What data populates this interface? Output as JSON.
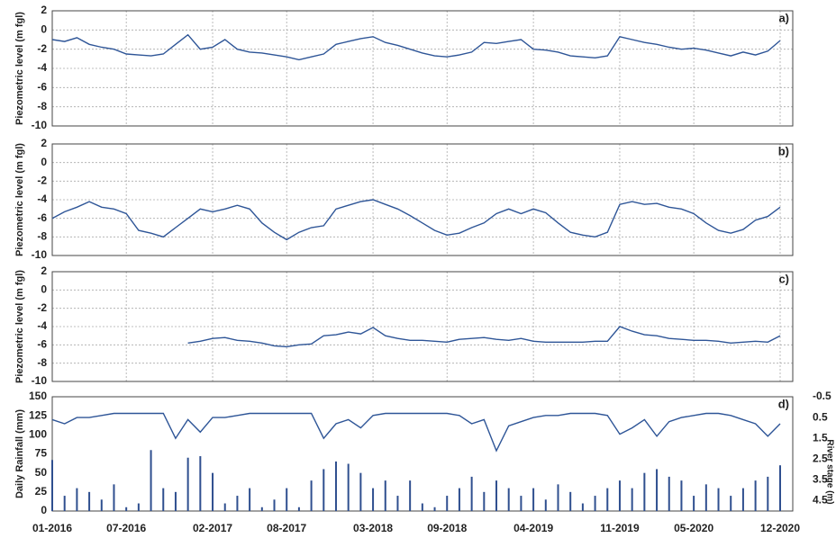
{
  "chart_data": [
    {
      "type": "line",
      "annotation": "a)",
      "ylabel": "Piezometric level (m fgl)",
      "grid": true,
      "xtick_labels": false,
      "xlim": [
        "01-2016",
        "12-2020"
      ],
      "xticks": [
        "01-2016",
        "07-2016",
        "02-2017",
        "08-2017",
        "03-2018",
        "09-2018",
        "04-2019",
        "11-2019",
        "05-2020",
        "12-2020"
      ],
      "ylim": [
        -10,
        2
      ],
      "yticks": [
        2,
        0,
        -2,
        -4,
        -6,
        -8,
        -10
      ],
      "x": [
        "01-2016",
        "02-2016",
        "03-2016",
        "04-2016",
        "05-2016",
        "06-2016",
        "07-2016",
        "08-2016",
        "09-2016",
        "10-2016",
        "11-2016",
        "12-2016",
        "01-2017",
        "02-2017",
        "03-2017",
        "04-2017",
        "05-2017",
        "06-2017",
        "07-2017",
        "08-2017",
        "09-2017",
        "10-2017",
        "11-2017",
        "12-2017",
        "01-2018",
        "02-2018",
        "03-2018",
        "04-2018",
        "05-2018",
        "06-2018",
        "07-2018",
        "08-2018",
        "09-2018",
        "10-2018",
        "11-2018",
        "12-2018",
        "01-2019",
        "02-2019",
        "03-2019",
        "04-2019",
        "05-2019",
        "06-2019",
        "07-2019",
        "08-2019",
        "09-2019",
        "10-2019",
        "11-2019",
        "12-2019",
        "01-2020",
        "02-2020",
        "03-2020",
        "04-2020",
        "05-2020",
        "06-2020",
        "07-2020",
        "08-2020",
        "09-2020",
        "10-2020",
        "11-2020",
        "12-2020"
      ],
      "series": [
        {
          "color": "#2e5597",
          "values": [
            -1.0,
            -1.2,
            -0.8,
            -1.5,
            -1.8,
            -2.0,
            -2.5,
            -2.6,
            -2.7,
            -2.5,
            -1.5,
            -0.5,
            -2.0,
            -1.8,
            -1.0,
            -2.0,
            -2.3,
            -2.4,
            -2.6,
            -2.8,
            -3.1,
            -2.8,
            -2.5,
            -1.5,
            -1.2,
            -0.9,
            -0.7,
            -1.3,
            -1.6,
            -2.0,
            -2.4,
            -2.7,
            -2.8,
            -2.6,
            -2.3,
            -1.3,
            -1.4,
            -1.2,
            -1.0,
            -2.0,
            -2.1,
            -2.3,
            -2.7,
            -2.8,
            -2.9,
            -2.7,
            -0.7,
            -1.0,
            -1.3,
            -1.5,
            -1.8,
            -2.0,
            -1.9,
            -2.1,
            -2.4,
            -2.7,
            -2.3,
            -2.6,
            -2.2,
            -1.1
          ]
        }
      ]
    },
    {
      "type": "line",
      "annotation": "b)",
      "ylabel": "Piezometric level (m fgl)",
      "grid": true,
      "xtick_labels": false,
      "xlim": [
        "01-2016",
        "12-2020"
      ],
      "xticks": [
        "01-2016",
        "07-2016",
        "02-2017",
        "08-2017",
        "03-2018",
        "09-2018",
        "04-2019",
        "11-2019",
        "05-2020",
        "12-2020"
      ],
      "ylim": [
        -10,
        2
      ],
      "yticks": [
        2,
        0,
        -2,
        -4,
        -6,
        -8,
        -10
      ],
      "x": [
        "01-2016",
        "02-2016",
        "03-2016",
        "04-2016",
        "05-2016",
        "06-2016",
        "07-2016",
        "08-2016",
        "09-2016",
        "10-2016",
        "11-2016",
        "12-2016",
        "01-2017",
        "02-2017",
        "03-2017",
        "04-2017",
        "05-2017",
        "06-2017",
        "07-2017",
        "08-2017",
        "09-2017",
        "10-2017",
        "11-2017",
        "12-2017",
        "01-2018",
        "02-2018",
        "03-2018",
        "04-2018",
        "05-2018",
        "06-2018",
        "07-2018",
        "08-2018",
        "09-2018",
        "10-2018",
        "11-2018",
        "12-2018",
        "01-2019",
        "02-2019",
        "03-2019",
        "04-2019",
        "05-2019",
        "06-2019",
        "07-2019",
        "08-2019",
        "09-2019",
        "10-2019",
        "11-2019",
        "12-2019",
        "01-2020",
        "02-2020",
        "03-2020",
        "04-2020",
        "05-2020",
        "06-2020",
        "07-2020",
        "08-2020",
        "09-2020",
        "10-2020",
        "11-2020",
        "12-2020"
      ],
      "series": [
        {
          "color": "#2e5597",
          "values": [
            -6.0,
            -5.3,
            -4.8,
            -4.2,
            -4.8,
            -5.0,
            -5.5,
            -7.3,
            -7.6,
            -8.0,
            -7.0,
            -6.0,
            -5.0,
            -5.3,
            -5.0,
            -4.6,
            -5.0,
            -6.5,
            -7.5,
            -8.3,
            -7.5,
            -7.0,
            -6.8,
            -5.0,
            -4.6,
            -4.2,
            -4.0,
            -4.5,
            -5.0,
            -5.7,
            -6.5,
            -7.3,
            -7.8,
            -7.6,
            -7.0,
            -6.5,
            -5.5,
            -5.0,
            -5.5,
            -5.0,
            -5.4,
            -6.5,
            -7.5,
            -7.8,
            -8.0,
            -7.5,
            -4.5,
            -4.2,
            -4.5,
            -4.4,
            -4.8,
            -5.0,
            -5.5,
            -6.5,
            -7.3,
            -7.6,
            -7.2,
            -6.2,
            -5.8,
            -4.8
          ]
        }
      ]
    },
    {
      "type": "line",
      "annotation": "c)",
      "ylabel": "Piezometric level (m fgl)",
      "grid": true,
      "xtick_labels": false,
      "xlim": [
        "01-2016",
        "12-2020"
      ],
      "xticks": [
        "01-2016",
        "07-2016",
        "02-2017",
        "08-2017",
        "03-2018",
        "09-2018",
        "04-2019",
        "11-2019",
        "05-2020",
        "12-2020"
      ],
      "ylim": [
        -10,
        2
      ],
      "yticks": [
        2,
        0,
        -2,
        -4,
        -6,
        -8,
        -10
      ],
      "x": [
        "01-2016",
        "02-2016",
        "03-2016",
        "04-2016",
        "05-2016",
        "06-2016",
        "07-2016",
        "08-2016",
        "09-2016",
        "10-2016",
        "11-2016",
        "12-2016",
        "01-2017",
        "02-2017",
        "03-2017",
        "04-2017",
        "05-2017",
        "06-2017",
        "07-2017",
        "08-2017",
        "09-2017",
        "10-2017",
        "11-2017",
        "12-2017",
        "01-2018",
        "02-2018",
        "03-2018",
        "04-2018",
        "05-2018",
        "06-2018",
        "07-2018",
        "08-2018",
        "09-2018",
        "10-2018",
        "11-2018",
        "12-2018",
        "01-2019",
        "02-2019",
        "03-2019",
        "04-2019",
        "05-2019",
        "06-2019",
        "07-2019",
        "08-2019",
        "09-2019",
        "10-2019",
        "11-2019",
        "12-2019",
        "01-2020",
        "02-2020",
        "03-2020",
        "04-2020",
        "05-2020",
        "06-2020",
        "07-2020",
        "08-2020",
        "09-2020",
        "10-2020",
        "11-2020",
        "12-2020"
      ],
      "series": [
        {
          "color": "#2e5597",
          "values": [
            null,
            null,
            null,
            null,
            null,
            null,
            null,
            null,
            null,
            null,
            null,
            -5.8,
            -5.6,
            -5.3,
            -5.2,
            -5.5,
            -5.6,
            -5.8,
            -6.1,
            -6.2,
            -6.0,
            -5.9,
            -5.0,
            -4.9,
            -4.6,
            -4.8,
            -4.1,
            -5.0,
            -5.3,
            -5.5,
            -5.5,
            -5.6,
            -5.7,
            -5.4,
            -5.3,
            -5.2,
            -5.4,
            -5.5,
            -5.3,
            -5.6,
            -5.7,
            -5.7,
            -5.7,
            -5.7,
            -5.6,
            -5.6,
            -4.0,
            -4.5,
            -4.9,
            -5.0,
            -5.3,
            -5.4,
            -5.5,
            -5.5,
            -5.6,
            -5.8,
            -5.7,
            -5.6,
            -5.7,
            -5.0
          ]
        }
      ]
    },
    {
      "type": "combo",
      "annotation": "d)",
      "ylabel": "Daily Rainfall (mm)",
      "y2label": "River stage (m)",
      "grid": false,
      "xtick_labels": true,
      "xlim": [
        "01-2016",
        "12-2020"
      ],
      "xticks": [
        "01-2016",
        "07-2016",
        "02-2017",
        "08-2017",
        "03-2018",
        "09-2018",
        "04-2019",
        "11-2019",
        "05-2020",
        "12-2020"
      ],
      "ylim": [
        0,
        150
      ],
      "yticks": [
        0,
        25,
        50,
        75,
        100,
        125,
        150
      ],
      "y2lim": [
        5,
        -0.5
      ],
      "y2ticks": [
        -0.5,
        0.5,
        1.5,
        2.5,
        3.5,
        4.5
      ],
      "x": [
        "01-2016",
        "02-2016",
        "03-2016",
        "04-2016",
        "05-2016",
        "06-2016",
        "07-2016",
        "08-2016",
        "09-2016",
        "10-2016",
        "11-2016",
        "12-2016",
        "01-2017",
        "02-2017",
        "03-2017",
        "04-2017",
        "05-2017",
        "06-2017",
        "07-2017",
        "08-2017",
        "09-2017",
        "10-2017",
        "11-2017",
        "12-2017",
        "01-2018",
        "02-2018",
        "03-2018",
        "04-2018",
        "05-2018",
        "06-2018",
        "07-2018",
        "08-2018",
        "09-2018",
        "10-2018",
        "11-2018",
        "12-2018",
        "01-2019",
        "02-2019",
        "03-2019",
        "04-2019",
        "05-2019",
        "06-2019",
        "07-2019",
        "08-2019",
        "09-2019",
        "10-2019",
        "11-2019",
        "12-2019",
        "01-2020",
        "02-2020",
        "03-2020",
        "04-2020",
        "05-2020",
        "06-2020",
        "07-2020",
        "08-2020",
        "09-2020",
        "10-2020",
        "11-2020",
        "12-2020"
      ],
      "series": [
        {
          "kind": "bar",
          "color": "#2f4f8f",
          "values": [
            67,
            20,
            30,
            25,
            15,
            35,
            5,
            10,
            80,
            30,
            25,
            70,
            72,
            50,
            10,
            20,
            30,
            5,
            15,
            30,
            5,
            40,
            55,
            65,
            62,
            50,
            30,
            40,
            20,
            40,
            10,
            5,
            20,
            30,
            45,
            25,
            40,
            30,
            20,
            30,
            15,
            35,
            25,
            10,
            20,
            30,
            40,
            30,
            50,
            55,
            45,
            40,
            20,
            35,
            30,
            20,
            30,
            40,
            45,
            60
          ]
        },
        {
          "kind": "line",
          "axis": "y2",
          "color": "#2e5597",
          "values": [
            0.6,
            0.8,
            0.5,
            0.5,
            0.4,
            0.3,
            0.3,
            0.3,
            0.3,
            0.3,
            1.5,
            0.6,
            1.2,
            0.5,
            0.5,
            0.4,
            0.3,
            0.3,
            0.3,
            0.3,
            0.3,
            0.3,
            1.5,
            0.8,
            0.6,
            1.0,
            0.4,
            0.3,
            0.3,
            0.3,
            0.3,
            0.3,
            0.3,
            0.4,
            0.8,
            0.6,
            2.1,
            0.9,
            0.7,
            0.5,
            0.4,
            0.4,
            0.3,
            0.3,
            0.3,
            0.4,
            1.3,
            1.0,
            0.6,
            1.4,
            0.7,
            0.5,
            0.4,
            0.3,
            0.3,
            0.4,
            0.6,
            0.8,
            1.4,
            0.8
          ]
        }
      ]
    }
  ]
}
